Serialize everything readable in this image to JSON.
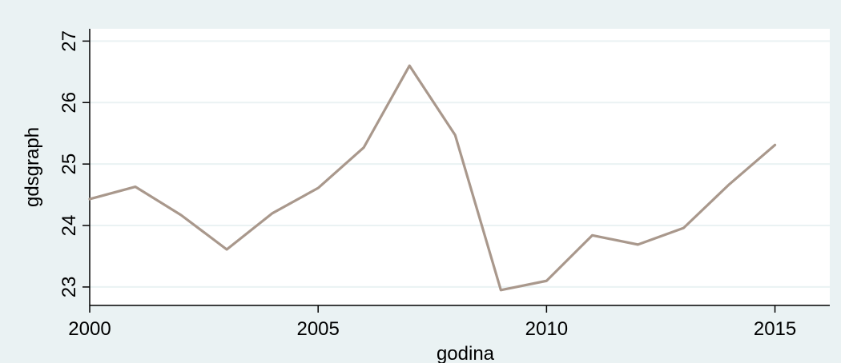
{
  "chart_data": {
    "type": "line",
    "xlabel": "godina",
    "ylabel": "gdsgraph",
    "xlim": [
      2000,
      2016.2
    ],
    "ylim": [
      22.7,
      27.2
    ],
    "x_ticks": [
      "2000",
      "2005",
      "2010",
      "2015"
    ],
    "y_ticks": [
      "23",
      "24",
      "25",
      "26",
      "27"
    ],
    "grid": true,
    "legend": "none",
    "series": [
      {
        "x": [
          2000,
          2001,
          2002,
          2003,
          2004,
          2005,
          2006,
          2007,
          2008,
          2009,
          2010,
          2011,
          2012,
          2013,
          2014,
          2015
        ],
        "values": [
          24.43,
          24.63,
          24.17,
          23.61,
          24.2,
          24.61,
          25.27,
          26.6,
          25.47,
          22.95,
          23.1,
          23.84,
          23.69,
          23.96,
          24.67,
          25.31
        ]
      }
    ]
  },
  "colors": {
    "outer_background": "#eaf2f3",
    "plot_background": "#ffffff",
    "gridline": "#eaf2f3",
    "line": "#a9988c",
    "axis": "#000000"
  }
}
